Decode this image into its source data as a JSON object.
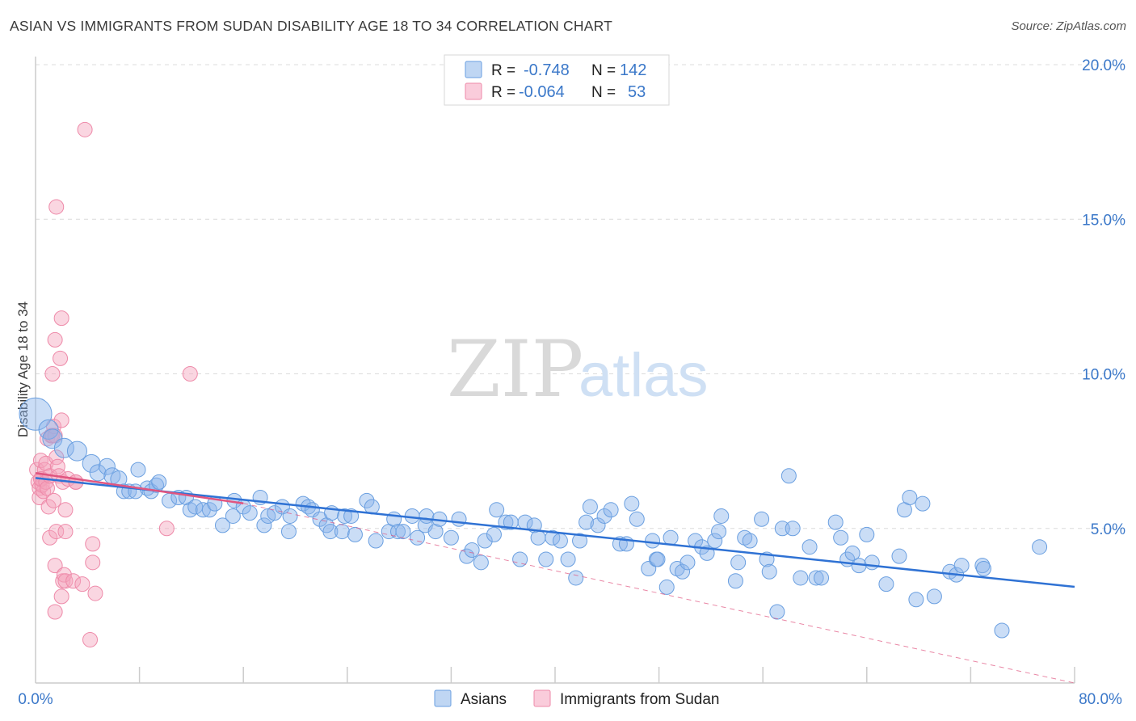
{
  "title": "ASIAN VS IMMIGRANTS FROM SUDAN DISABILITY AGE 18 TO 34 CORRELATION CHART",
  "source": "Source: ZipAtlas.com",
  "watermark": {
    "zip": "ZIP",
    "atlas": "atlas"
  },
  "colors": {
    "asians": "#8ab4ea",
    "asians_stroke": "#6a9fe0",
    "asians_line": "#2f72d4",
    "sudan": "#f5a3bd",
    "sudan_stroke": "#ee8aa9",
    "sudan_line": "#e05580",
    "tick_text": "#3b78c9",
    "grid": "#dcdcdc"
  },
  "legend": {
    "rows": [
      {
        "r_label": "R =",
        "r_value": "-0.748",
        "n_label": "N =",
        "n_value": "142"
      },
      {
        "r_label": "R =",
        "r_value": "-0.064",
        "n_label": "N =",
        "n_value": "53"
      }
    ]
  },
  "bottom_legend": {
    "items": [
      "Asians",
      "Immigrants from Sudan"
    ]
  },
  "chart_data": {
    "type": "scatter",
    "title": "ASIAN VS IMMIGRANTS FROM SUDAN DISABILITY AGE 18 TO 34 CORRELATION CHART",
    "xlabel": "",
    "ylabel": "Disability Age 18 to 34",
    "xlim": [
      0,
      80
    ],
    "ylim": [
      0,
      20
    ],
    "x_tick_labels": [
      "0.0%",
      "80.0%"
    ],
    "y_ticks": [
      5,
      10,
      15,
      20
    ],
    "y_tick_labels": [
      "5.0%",
      "10.0%",
      "15.0%",
      "20.0%"
    ],
    "grid": true,
    "legend_position": "top-center",
    "series": [
      {
        "name": "Asians",
        "r": -0.748,
        "n": 142,
        "trend": {
          "x": [
            0,
            80
          ],
          "y": [
            6.63,
            3.11
          ]
        },
        "points": [
          [
            0.0,
            8.7,
            20
          ],
          [
            1.0,
            8.2,
            12
          ],
          [
            1.3,
            7.9,
            12
          ],
          [
            2.2,
            7.6,
            12
          ],
          [
            3.2,
            7.5,
            12
          ],
          [
            4.3,
            7.1,
            11
          ],
          [
            4.8,
            6.8,
            10
          ],
          [
            5.5,
            7.0,
            10
          ],
          [
            5.9,
            6.7,
            10
          ],
          [
            6.4,
            6.6,
            10
          ],
          [
            6.8,
            6.2,
            9
          ],
          [
            7.2,
            6.2,
            9
          ],
          [
            7.7,
            6.2,
            9
          ],
          [
            7.9,
            6.9,
            9
          ],
          [
            8.6,
            6.3,
            9
          ],
          [
            8.9,
            6.2,
            9
          ],
          [
            9.3,
            6.4,
            9
          ],
          [
            9.5,
            6.5,
            9
          ],
          [
            10.3,
            5.9,
            9
          ],
          [
            11.0,
            6.0,
            9
          ],
          [
            11.6,
            6.0,
            9
          ],
          [
            11.9,
            5.6,
            9
          ],
          [
            12.3,
            5.7,
            9
          ],
          [
            12.9,
            5.6,
            9
          ],
          [
            13.4,
            5.6,
            9
          ],
          [
            13.8,
            5.8,
            9
          ],
          [
            14.4,
            5.1,
            9
          ],
          [
            15.2,
            5.4,
            9
          ],
          [
            15.3,
            5.9,
            9
          ],
          [
            16.0,
            5.7,
            9
          ],
          [
            16.5,
            5.5,
            9
          ],
          [
            17.3,
            6.0,
            9
          ],
          [
            17.6,
            5.1,
            9
          ],
          [
            17.9,
            5.4,
            9
          ],
          [
            18.4,
            5.5,
            9
          ],
          [
            19.0,
            5.7,
            9
          ],
          [
            19.5,
            4.9,
            9
          ],
          [
            19.6,
            5.4,
            9
          ],
          [
            20.6,
            5.8,
            9
          ],
          [
            21.0,
            5.7,
            9
          ],
          [
            21.3,
            5.6,
            9
          ],
          [
            21.9,
            5.3,
            9
          ],
          [
            22.4,
            5.1,
            9
          ],
          [
            22.7,
            4.9,
            9
          ],
          [
            22.8,
            5.5,
            9
          ],
          [
            23.6,
            4.9,
            9
          ],
          [
            23.8,
            5.4,
            9
          ],
          [
            24.3,
            5.4,
            9
          ],
          [
            24.6,
            4.8,
            9
          ],
          [
            25.5,
            5.9,
            9
          ],
          [
            25.9,
            5.7,
            9
          ],
          [
            26.2,
            4.6,
            9
          ],
          [
            27.2,
            4.9,
            9
          ],
          [
            27.6,
            5.3,
            9
          ],
          [
            27.9,
            4.9,
            9
          ],
          [
            28.3,
            4.9,
            9
          ],
          [
            29.0,
            5.4,
            9
          ],
          [
            29.4,
            4.7,
            9
          ],
          [
            30.0,
            5.1,
            9
          ],
          [
            30.1,
            5.4,
            9
          ],
          [
            30.8,
            4.9,
            9
          ],
          [
            31.1,
            5.3,
            9
          ],
          [
            32.0,
            4.7,
            9
          ],
          [
            32.6,
            5.3,
            9
          ],
          [
            33.2,
            4.1,
            9
          ],
          [
            33.6,
            4.3,
            9
          ],
          [
            34.3,
            3.9,
            9
          ],
          [
            34.6,
            4.6,
            9
          ],
          [
            35.3,
            4.8,
            9
          ],
          [
            35.5,
            5.6,
            9
          ],
          [
            36.2,
            5.2,
            9
          ],
          [
            36.6,
            5.2,
            9
          ],
          [
            37.3,
            4.0,
            9
          ],
          [
            37.7,
            5.2,
            9
          ],
          [
            38.4,
            5.1,
            9
          ],
          [
            38.7,
            4.7,
            9
          ],
          [
            39.3,
            4.0,
            9
          ],
          [
            39.8,
            4.7,
            9
          ],
          [
            40.4,
            4.6,
            9
          ],
          [
            41.0,
            4.0,
            9
          ],
          [
            41.6,
            3.4,
            9
          ],
          [
            41.9,
            4.6,
            9
          ],
          [
            42.4,
            5.2,
            9
          ],
          [
            42.7,
            5.7,
            9
          ],
          [
            43.3,
            5.1,
            9
          ],
          [
            43.8,
            5.4,
            9
          ],
          [
            44.3,
            5.6,
            9
          ],
          [
            45.0,
            4.5,
            9
          ],
          [
            45.5,
            4.5,
            9
          ],
          [
            45.9,
            5.8,
            9
          ],
          [
            46.3,
            5.3,
            9
          ],
          [
            47.2,
            3.7,
            9
          ],
          [
            47.5,
            4.6,
            9
          ],
          [
            47.8,
            4.0,
            9
          ],
          [
            48.6,
            3.1,
            9
          ],
          [
            48.9,
            4.7,
            9
          ],
          [
            49.4,
            3.7,
            9
          ],
          [
            49.8,
            3.6,
            9
          ],
          [
            50.2,
            3.9,
            9
          ],
          [
            50.8,
            4.6,
            9
          ],
          [
            51.3,
            4.4,
            9
          ],
          [
            51.7,
            4.2,
            9
          ],
          [
            52.3,
            4.6,
            9
          ],
          [
            52.6,
            4.9,
            9
          ],
          [
            52.8,
            5.4,
            9
          ],
          [
            53.9,
            3.3,
            9
          ],
          [
            54.1,
            3.9,
            9
          ],
          [
            54.6,
            4.7,
            9
          ],
          [
            55.0,
            4.6,
            9
          ],
          [
            55.9,
            5.3,
            9
          ],
          [
            56.3,
            4.0,
            9
          ],
          [
            56.5,
            3.6,
            9
          ],
          [
            57.1,
            2.3,
            9
          ],
          [
            57.5,
            5.0,
            9
          ],
          [
            58.0,
            6.7,
            9
          ],
          [
            58.3,
            5.0,
            9
          ],
          [
            58.9,
            3.4,
            9
          ],
          [
            59.6,
            4.4,
            9
          ],
          [
            60.1,
            3.4,
            9
          ],
          [
            60.5,
            3.4,
            9
          ],
          [
            61.6,
            5.2,
            9
          ],
          [
            62.0,
            4.7,
            9
          ],
          [
            62.5,
            4.0,
            9
          ],
          [
            62.9,
            4.2,
            9
          ],
          [
            63.4,
            3.8,
            9
          ],
          [
            64.0,
            4.8,
            9
          ],
          [
            64.4,
            3.9,
            9
          ],
          [
            65.5,
            3.2,
            9
          ],
          [
            66.5,
            4.1,
            9
          ],
          [
            66.9,
            5.6,
            9
          ],
          [
            67.3,
            6.0,
            9
          ],
          [
            67.8,
            2.7,
            9
          ],
          [
            68.3,
            5.8,
            9
          ],
          [
            69.2,
            2.8,
            9
          ],
          [
            70.4,
            3.6,
            9
          ],
          [
            70.9,
            3.5,
            9
          ],
          [
            71.3,
            3.8,
            9
          ],
          [
            72.9,
            3.8,
            9
          ],
          [
            74.4,
            1.7,
            9
          ],
          [
            77.3,
            4.4,
            9
          ],
          [
            73.0,
            3.7,
            9
          ],
          [
            47.9,
            4.0,
            9
          ]
        ]
      },
      {
        "name": "Immigrants from Sudan",
        "r": -0.064,
        "n": 53,
        "trend": {
          "x": [
            0,
            16
          ],
          "y": [
            6.79,
            5.81
          ]
        },
        "trend_dashed": {
          "x": [
            16,
            80
          ],
          "y": [
            5.81,
            0.0
          ]
        },
        "points": [
          [
            0.1,
            6.9,
            9
          ],
          [
            0.2,
            6.5,
            9
          ],
          [
            0.3,
            6.3,
            9
          ],
          [
            0.3,
            6.0,
            9
          ],
          [
            0.4,
            7.2,
            9
          ],
          [
            0.5,
            6.6,
            9
          ],
          [
            0.6,
            6.2,
            9
          ],
          [
            0.7,
            6.9,
            9
          ],
          [
            0.5,
            6.4,
            9
          ],
          [
            0.4,
            6.6,
            9
          ],
          [
            0.8,
            6.5,
            9
          ],
          [
            0.9,
            6.3,
            9
          ],
          [
            0.8,
            7.1,
            9
          ],
          [
            0.9,
            7.9,
            9
          ],
          [
            1.0,
            5.7,
            9
          ],
          [
            1.1,
            6.7,
            9
          ],
          [
            1.1,
            4.7,
            9
          ],
          [
            1.2,
            8.0,
            9
          ],
          [
            1.3,
            8.0,
            9
          ],
          [
            1.3,
            10.0,
            9
          ],
          [
            1.4,
            5.9,
            9
          ],
          [
            1.4,
            8.3,
            9
          ],
          [
            1.5,
            8.0,
            9
          ],
          [
            1.5,
            11.1,
            9
          ],
          [
            1.6,
            7.3,
            9
          ],
          [
            1.6,
            4.9,
            9
          ],
          [
            1.6,
            15.4,
            9
          ],
          [
            1.5,
            3.8,
            9
          ],
          [
            1.5,
            2.3,
            9
          ],
          [
            1.7,
            7.0,
            9
          ],
          [
            1.8,
            6.7,
            9
          ],
          [
            1.9,
            10.5,
            9
          ],
          [
            2.0,
            11.8,
            9
          ],
          [
            2.0,
            8.5,
            9
          ],
          [
            2.0,
            2.8,
            9
          ],
          [
            2.1,
            6.5,
            9
          ],
          [
            2.1,
            3.3,
            9
          ],
          [
            2.2,
            3.5,
            9
          ],
          [
            2.3,
            4.9,
            9
          ],
          [
            2.3,
            3.3,
            9
          ],
          [
            2.3,
            5.6,
            9
          ],
          [
            2.5,
            6.6,
            9
          ],
          [
            2.9,
            3.3,
            9
          ],
          [
            3.1,
            6.5,
            9
          ],
          [
            3.1,
            6.5,
            9
          ],
          [
            3.6,
            3.2,
            9
          ],
          [
            3.8,
            17.9,
            9
          ],
          [
            4.2,
            1.4,
            9
          ],
          [
            4.4,
            3.9,
            9
          ],
          [
            4.6,
            2.9,
            9
          ],
          [
            4.4,
            4.5,
            9
          ],
          [
            10.1,
            5.0,
            9
          ],
          [
            11.9,
            10.0,
            9
          ]
        ]
      }
    ]
  }
}
